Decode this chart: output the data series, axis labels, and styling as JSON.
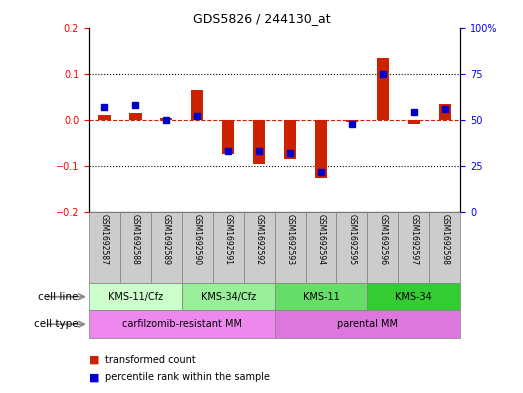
{
  "title": "GDS5826 / 244130_at",
  "samples": [
    "GSM1692587",
    "GSM1692588",
    "GSM1692589",
    "GSM1692590",
    "GSM1692591",
    "GSM1692592",
    "GSM1692593",
    "GSM1692594",
    "GSM1692595",
    "GSM1692596",
    "GSM1692597",
    "GSM1692598"
  ],
  "transformed_count": [
    0.01,
    0.015,
    0.005,
    0.065,
    -0.075,
    -0.095,
    -0.085,
    -0.125,
    -0.005,
    0.135,
    -0.01,
    0.035
  ],
  "percentile_rank": [
    57,
    58,
    50,
    52,
    33,
    33,
    32,
    22,
    48,
    75,
    54,
    56
  ],
  "ylim_left": [
    -0.2,
    0.2
  ],
  "ylim_right": [
    0,
    100
  ],
  "yticks_left": [
    -0.2,
    -0.1,
    0.0,
    0.1,
    0.2
  ],
  "yticks_right": [
    0,
    25,
    50,
    75,
    100
  ],
  "bar_color": "#cc2200",
  "dot_color": "#0000cc",
  "ref_line_color": "#cc2200",
  "sample_box_color": "#cccccc",
  "cell_lines": [
    {
      "label": "KMS-11/Cfz",
      "start": 0,
      "end": 3,
      "color": "#ccffcc"
    },
    {
      "label": "KMS-34/Cfz",
      "start": 3,
      "end": 6,
      "color": "#99ee99"
    },
    {
      "label": "KMS-11",
      "start": 6,
      "end": 9,
      "color": "#66dd66"
    },
    {
      "label": "KMS-34",
      "start": 9,
      "end": 12,
      "color": "#33cc33"
    }
  ],
  "cell_types": [
    {
      "label": "carfilzomib-resistant MM",
      "start": 0,
      "end": 6,
      "color": "#ee88ee"
    },
    {
      "label": "parental MM",
      "start": 6,
      "end": 12,
      "color": "#dd77dd"
    }
  ],
  "legend_items": [
    {
      "label": "transformed count",
      "color": "#cc2200"
    },
    {
      "label": "percentile rank within the sample",
      "color": "#0000cc"
    }
  ],
  "cell_line_label": "cell line",
  "cell_type_label": "cell type",
  "arrow_color": "#aaaaaa"
}
